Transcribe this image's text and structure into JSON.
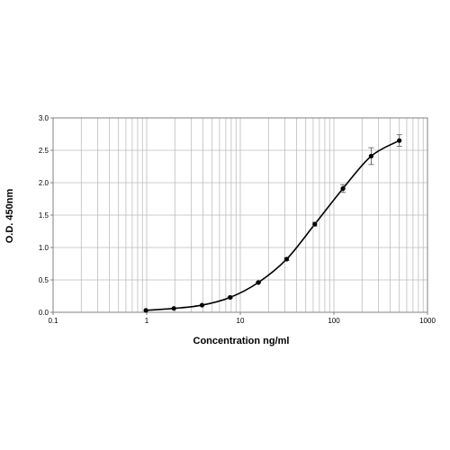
{
  "chart_data": {
    "type": "scatter",
    "xlabel": "Concentration ng/ml",
    "ylabel": "O.D. 450nm",
    "x_scale": "log",
    "xlim": [
      0.1,
      1000
    ],
    "ylim": [
      0,
      3.0
    ],
    "x_ticks": [
      "0.1",
      "1",
      "10",
      "100",
      "1000"
    ],
    "y_ticks": [
      "0.0",
      "0.5",
      "1.0",
      "1.5",
      "2.0",
      "2.5",
      "3.0"
    ],
    "grid": true,
    "fit_curve": true,
    "colors": {
      "points": "#000000",
      "curve": "#000000",
      "grid": "#bdbdbd",
      "axes": "#808080"
    },
    "series": [
      {
        "x": [
          0.98,
          1.95,
          3.9,
          7.8,
          15.6,
          31.25,
          62.5,
          125,
          250,
          500
        ],
        "y": [
          0.03,
          0.06,
          0.11,
          0.23,
          0.46,
          0.82,
          1.36,
          1.91,
          2.41,
          2.65
        ],
        "error": [
          0.005,
          0.005,
          0.005,
          0.01,
          0.01,
          0.02,
          0.03,
          0.06,
          0.13,
          0.09
        ]
      }
    ]
  }
}
